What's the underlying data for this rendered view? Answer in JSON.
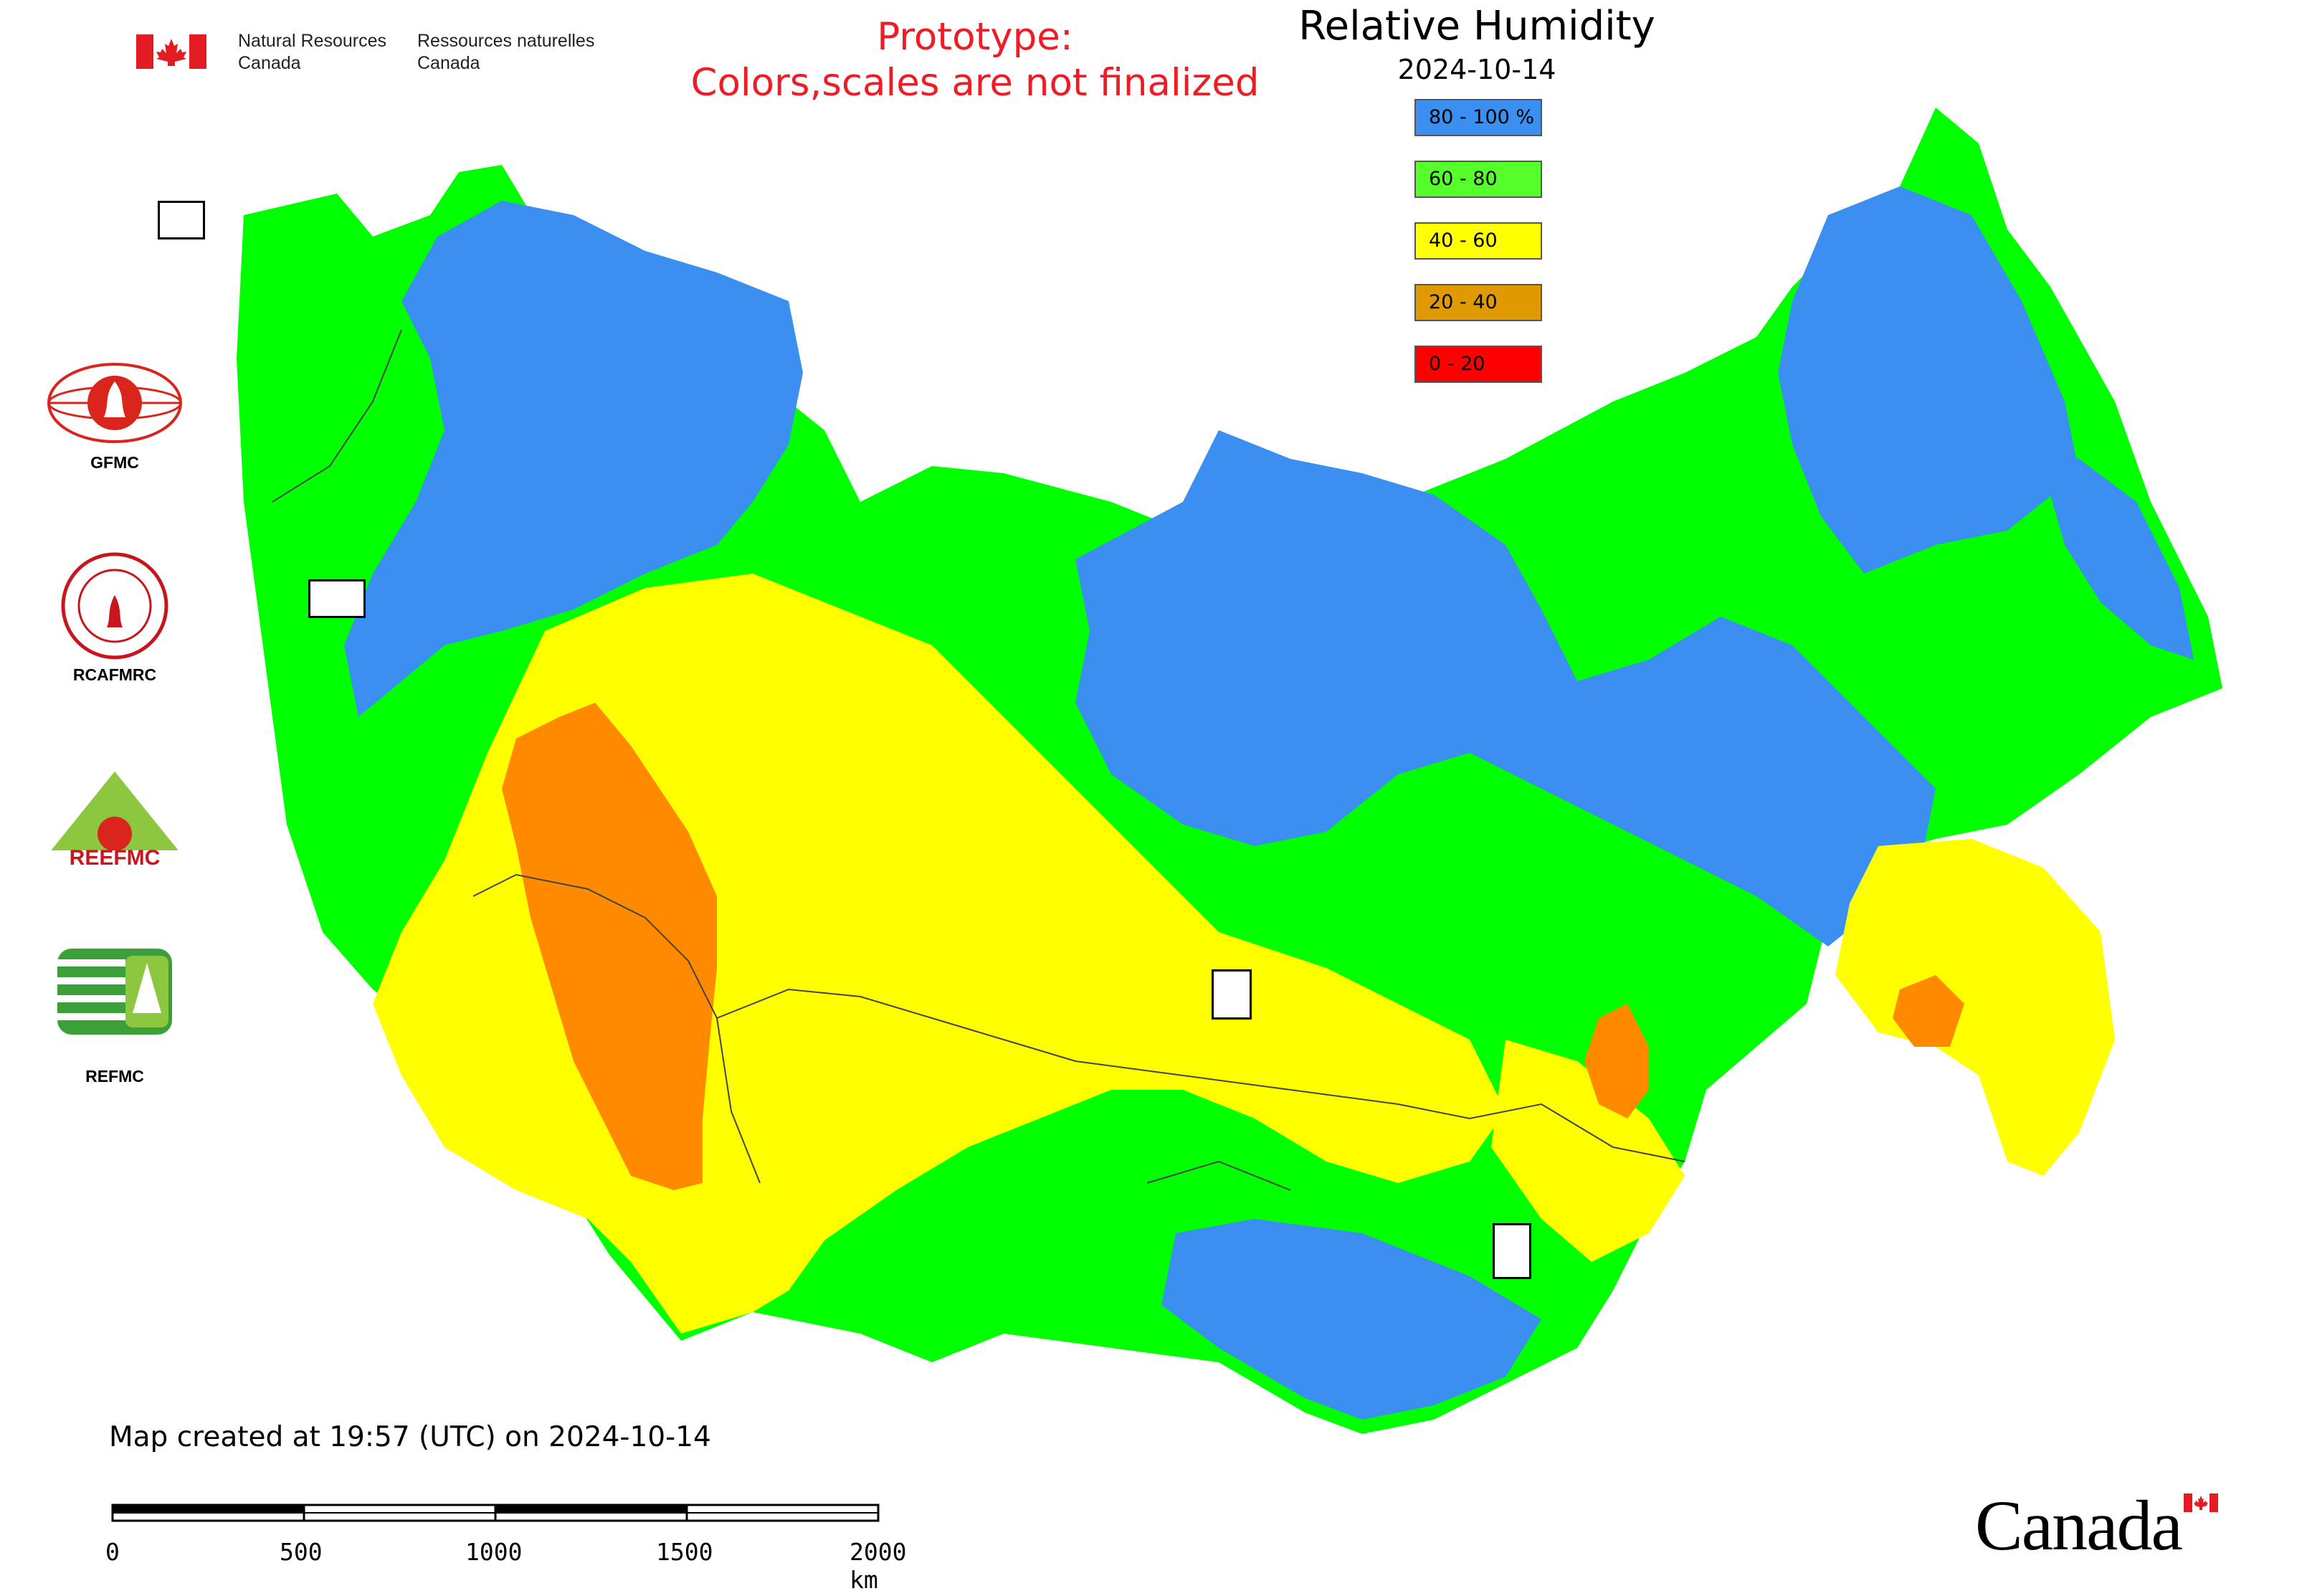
{
  "header": {
    "agency_en": "Natural Resources\nCanada",
    "agency_fr": "Ressources naturelles\nCanada",
    "prototype_line1": "Prototype:",
    "prototype_line2": "Colors,scales are not finalized",
    "title": "Relative Humidity",
    "date": "2024-10-14"
  },
  "legend": [
    {
      "label": "80 - 100 %",
      "color": "#3a8ff0"
    },
    {
      "label": "60 - 80",
      "color": "#55ff2a"
    },
    {
      "label": "40 - 60",
      "color": "#ffff00"
    },
    {
      "label": "20 - 40",
      "color": "#e09a00"
    },
    {
      "label": "0 - 20",
      "color": "#ff0000"
    }
  ],
  "colors": {
    "humid_high": "#3a8ff0",
    "humid_mid": "#00ff00",
    "humid_low": "#ffff00",
    "humid_vlow": "#ff8a00",
    "prototype_text": "#ee1c24",
    "canada_red": "#e31b23"
  },
  "orgs": [
    {
      "label": "GFMC",
      "icon": "gfmc-logo-icon"
    },
    {
      "label": "RCAFMRC",
      "icon": "rcafmrc-logo-icon"
    },
    {
      "label": "REEFMC",
      "icon": "reefmc-logo-icon"
    },
    {
      "label": "REFMC",
      "icon": "refmc-logo-icon"
    }
  ],
  "markers": [
    "GFMC",
    "REEFMC",
    "REFMC",
    "RCAFMRC"
  ],
  "footer": {
    "created": "Map created at 19:57 (UTC) on 2024-10-14",
    "scale_labels": [
      "0",
      "500",
      "1000",
      "1500",
      "2000 km"
    ],
    "wordmark": "Canada"
  }
}
